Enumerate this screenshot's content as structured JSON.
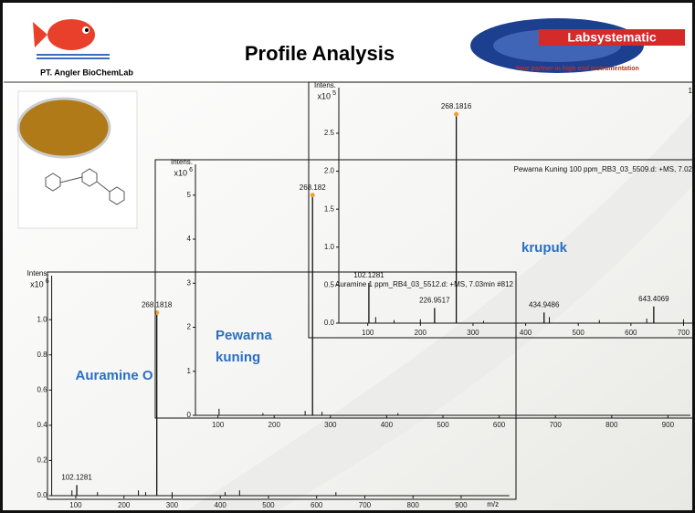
{
  "slide": {
    "title": "Profile Analysis",
    "logo_left": "PT. Angler BioChemLab",
    "logo_right": "Labsystematic",
    "logo_tagline": "Your partner in high end instrumentation",
    "annotations": [
      "Auramine O",
      "Pewarna",
      "kuning",
      "krupuk"
    ]
  },
  "chart_data": [
    {
      "type": "spectrum",
      "title": "Auramine 1 ppm_RB4_03_5512.d: +MS, 7.03min #812",
      "y_label": "Intens.",
      "y_scale": "x10",
      "y_exponent": "6",
      "x_label": "m/z",
      "xlim": [
        50,
        1000
      ],
      "ylim": [
        0,
        1.25
      ],
      "xticks": [
        100,
        200,
        300,
        400,
        500,
        600,
        700,
        800,
        900
      ],
      "yticks": [
        {
          "value": 0,
          "label": "0.0"
        },
        0.2,
        0.4,
        0.6,
        0.8,
        {
          "value": 1,
          "label": "1.0"
        }
      ],
      "labeled_peaks": {
        "x": [
          102.1281,
          268.1818
        ],
        "values": [
          0.06,
          1.04
        ]
      },
      "minor_peaks": {
        "x": [
          92,
          145,
          230,
          245,
          300,
          410,
          440,
          640
        ],
        "values": [
          0.03,
          0.02,
          0.03,
          0.02,
          0.02,
          0.02,
          0.03,
          0.02
        ]
      }
    },
    {
      "type": "spectrum",
      "title": "Pewarna Kuning 100 ppm_RB3_03_5509.d: +MS, 7.02",
      "y_label": "Intens.",
      "y_scale": "x10",
      "y_exponent": "6",
      "xlim": [
        60,
        940
      ],
      "ylim": [
        0,
        5.7
      ],
      "xticks": [
        100,
        200,
        300,
        400,
        500,
        600,
        700,
        800,
        900
      ],
      "yticks": [
        0,
        1,
        2,
        3,
        4,
        5
      ],
      "labeled_peaks": {
        "x": [
          268.182
        ],
        "values": [
          5.0
        ]
      },
      "minor_peaks": {
        "x": [
          102,
          180,
          255,
          285,
          420
        ],
        "values": [
          0.15,
          0.05,
          0.1,
          0.08,
          0.05
        ]
      }
    },
    {
      "type": "spectrum",
      "title": "1",
      "y_label": "Intens.",
      "y_scale": "x10",
      "y_exponent": "5",
      "xlim": [
        45,
        720
      ],
      "ylim": [
        0,
        3.1
      ],
      "xticks": [
        100,
        200,
        300,
        400,
        500,
        600,
        700
      ],
      "yticks": [
        {
          "value": 0,
          "label": "0.0"
        },
        0.5,
        {
          "value": 1,
          "label": "1.0"
        },
        1.5,
        {
          "value": 2,
          "label": "2.0"
        },
        2.5
      ],
      "labeled_peaks": {
        "x": [
          102.1281,
          226.9517,
          268.1816,
          434.9486,
          643.4069
        ],
        "values": [
          0.53,
          0.2,
          2.75,
          0.14,
          0.22
        ]
      },
      "minor_peaks": {
        "x": [
          115,
          150,
          200,
          320,
          445,
          540,
          630,
          700
        ],
        "values": [
          0.08,
          0.04,
          0.05,
          0.03,
          0.08,
          0.04,
          0.06,
          0.05
        ]
      }
    }
  ]
}
